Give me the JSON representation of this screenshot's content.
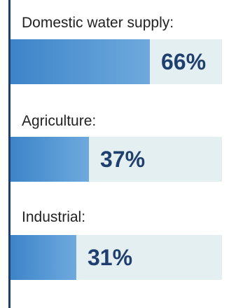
{
  "chart_data": {
    "type": "bar",
    "orientation": "horizontal",
    "categories": [
      "Domestic water supply:",
      "Agriculture:",
      "Industrial:"
    ],
    "values": [
      66,
      37,
      31
    ],
    "value_labels": [
      "66%",
      "37%",
      "31%"
    ],
    "unit": "%",
    "xlim": [
      0,
      100
    ],
    "grid": false,
    "legend": "none"
  },
  "colors": {
    "bar": "#4a90d0",
    "track": "#e3eff0",
    "value_text": "#1f3f6e",
    "axis": "#1f3f6e"
  }
}
